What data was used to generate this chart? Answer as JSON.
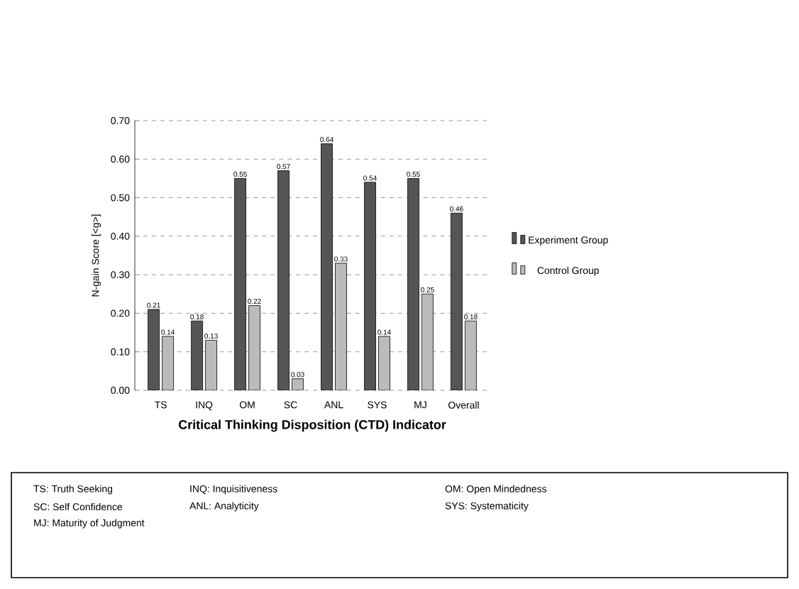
{
  "chart_data": {
    "type": "bar",
    "xlabel": "Critical Thinking Disposition (CTD) Indicator",
    "ylabel": "N-gain Score [<g>]",
    "categories": [
      "TS",
      "INQ",
      "OM",
      "SC",
      "ANL",
      "SYS",
      "MJ",
      "Overall"
    ],
    "series": [
      {
        "name": "Experiment Group",
        "color": "#555555",
        "values": [
          0.21,
          0.18,
          0.55,
          0.57,
          0.64,
          0.54,
          0.55,
          0.46
        ]
      },
      {
        "name": "Control Group",
        "color": "#bbbbbb",
        "values": [
          0.14,
          0.13,
          0.22,
          0.03,
          0.33,
          0.14,
          0.25,
          0.18
        ]
      }
    ],
    "ylim": [
      0,
      0.7
    ],
    "yticks": [
      {
        "value": 0,
        "label": "0.00"
      },
      {
        "value": 0.1,
        "label": "0.10"
      },
      {
        "value": 0.2,
        "label": "0.20"
      },
      {
        "value": 0.3,
        "label": "0.30"
      },
      {
        "value": 0.4,
        "label": "0.40"
      },
      {
        "value": 0.5,
        "label": "0.50"
      },
      {
        "value": 0.6,
        "label": "0.60"
      },
      {
        "value": 0.7,
        "label": "0.70"
      }
    ],
    "grid": "y",
    "legend": "right",
    "data_labels": true,
    "annotations": [
      "TS: Truth Seeking",
      "INQ: Inquisitiveness",
      "OM: Open Mindedness",
      "SC: Self Confidence",
      "ANL: Analyticity",
      "SYS: Systematicity",
      "MJ: Maturity of Judgment"
    ]
  }
}
